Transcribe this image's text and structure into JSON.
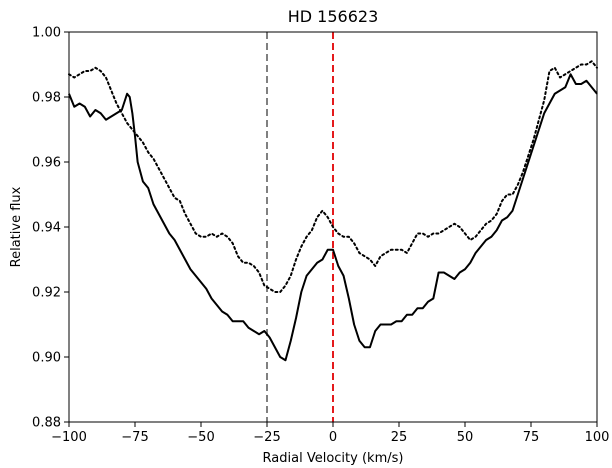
{
  "chart_data": {
    "type": "line",
    "title": "HD 156623",
    "xlabel": "Radial Velocity (km/s)",
    "ylabel": "Relative flux",
    "xlim": [
      -100,
      100
    ],
    "ylim": [
      0.88,
      1.0
    ],
    "xticks": [
      -100,
      -75,
      -50,
      -25,
      0,
      25,
      50,
      75,
      100
    ],
    "xtick_labels": [
      "−100",
      "−75",
      "−50",
      "−25",
      "0",
      "25",
      "50",
      "75",
      "100"
    ],
    "yticks": [
      0.88,
      0.9,
      0.92,
      0.94,
      0.96,
      0.98,
      1.0
    ],
    "ytick_labels": [
      "0.88",
      "0.90",
      "0.92",
      "0.94",
      "0.96",
      "0.98",
      "1.00"
    ],
    "grid": false,
    "legend": null,
    "vlines": [
      {
        "x": -25,
        "color": "#808080",
        "style": "dashed"
      },
      {
        "x": 0,
        "color": "#e41a1c",
        "style": "dashed"
      }
    ],
    "series": [
      {
        "style": "solid",
        "color": "#000000",
        "x": [
          -100,
          -98,
          -96,
          -94,
          -92,
          -90,
          -88,
          -86,
          -84,
          -82,
          -80,
          -78,
          -77,
          -76,
          -75,
          -74,
          -73,
          -72,
          -70,
          -68,
          -66,
          -64,
          -62,
          -60,
          -58,
          -56,
          -54,
          -52,
          -50,
          -48,
          -46,
          -44,
          -42,
          -40,
          -38,
          -36,
          -34,
          -32,
          -30,
          -28,
          -26,
          -24,
          -22,
          -20,
          -18,
          -16,
          -14,
          -12,
          -10,
          -8,
          -6,
          -4,
          -2,
          0,
          2,
          4,
          6,
          8,
          10,
          12,
          14,
          16,
          18,
          20,
          22,
          24,
          26,
          28,
          30,
          32,
          34,
          36,
          38,
          40,
          42,
          44,
          46,
          48,
          50,
          52,
          54,
          56,
          58,
          60,
          62,
          64,
          66,
          68,
          70,
          72,
          74,
          76,
          78,
          80,
          82,
          84,
          86,
          88,
          90,
          92,
          94,
          96,
          98,
          100
        ],
        "y": [
          0.981,
          0.977,
          0.978,
          0.977,
          0.974,
          0.976,
          0.975,
          0.973,
          0.974,
          0.975,
          0.976,
          0.981,
          0.98,
          0.975,
          0.968,
          0.96,
          0.957,
          0.954,
          0.952,
          0.947,
          0.944,
          0.941,
          0.938,
          0.936,
          0.933,
          0.93,
          0.927,
          0.925,
          0.923,
          0.921,
          0.918,
          0.916,
          0.914,
          0.913,
          0.911,
          0.911,
          0.911,
          0.909,
          0.908,
          0.907,
          0.908,
          0.906,
          0.903,
          0.9,
          0.899,
          0.905,
          0.912,
          0.92,
          0.925,
          0.927,
          0.929,
          0.93,
          0.933,
          0.933,
          0.928,
          0.925,
          0.918,
          0.91,
          0.905,
          0.903,
          0.903,
          0.908,
          0.91,
          0.91,
          0.91,
          0.911,
          0.911,
          0.913,
          0.913,
          0.915,
          0.915,
          0.917,
          0.918,
          0.926,
          0.926,
          0.925,
          0.924,
          0.926,
          0.927,
          0.929,
          0.932,
          0.934,
          0.936,
          0.937,
          0.939,
          0.942,
          0.943,
          0.945,
          0.95,
          0.955,
          0.96,
          0.965,
          0.97,
          0.975,
          0.978,
          0.981,
          0.982,
          0.983,
          0.987,
          0.984,
          0.984,
          0.985,
          0.983,
          0.981
        ]
      },
      {
        "style": "dotted",
        "color": "#000000",
        "x": [
          -100,
          -98,
          -96,
          -94,
          -92,
          -90,
          -88,
          -86,
          -84,
          -82,
          -80,
          -78,
          -76,
          -74,
          -72,
          -70,
          -68,
          -66,
          -64,
          -62,
          -60,
          -58,
          -56,
          -54,
          -52,
          -50,
          -48,
          -46,
          -44,
          -42,
          -40,
          -38,
          -36,
          -34,
          -32,
          -30,
          -28,
          -26,
          -24,
          -22,
          -20,
          -18,
          -16,
          -14,
          -12,
          -10,
          -8,
          -6,
          -4,
          -2,
          0,
          2,
          4,
          6,
          8,
          10,
          12,
          14,
          16,
          18,
          20,
          22,
          24,
          26,
          28,
          30,
          32,
          34,
          36,
          38,
          40,
          42,
          44,
          46,
          48,
          50,
          52,
          54,
          56,
          58,
          60,
          62,
          64,
          66,
          68,
          70,
          72,
          74,
          76,
          78,
          80,
          82,
          84,
          86,
          88,
          90,
          92,
          94,
          96,
          98,
          100
        ],
        "y": [
          0.987,
          0.986,
          0.987,
          0.988,
          0.988,
          0.989,
          0.988,
          0.986,
          0.982,
          0.978,
          0.975,
          0.972,
          0.97,
          0.968,
          0.966,
          0.963,
          0.961,
          0.958,
          0.955,
          0.952,
          0.949,
          0.948,
          0.944,
          0.941,
          0.938,
          0.937,
          0.937,
          0.938,
          0.937,
          0.938,
          0.937,
          0.935,
          0.931,
          0.929,
          0.929,
          0.928,
          0.926,
          0.922,
          0.921,
          0.92,
          0.92,
          0.922,
          0.925,
          0.93,
          0.934,
          0.937,
          0.939,
          0.943,
          0.945,
          0.943,
          0.94,
          0.938,
          0.937,
          0.937,
          0.935,
          0.932,
          0.931,
          0.93,
          0.928,
          0.931,
          0.932,
          0.933,
          0.933,
          0.933,
          0.932,
          0.935,
          0.938,
          0.938,
          0.937,
          0.938,
          0.938,
          0.939,
          0.94,
          0.941,
          0.94,
          0.938,
          0.936,
          0.937,
          0.939,
          0.941,
          0.942,
          0.944,
          0.948,
          0.95,
          0.95,
          0.953,
          0.957,
          0.962,
          0.967,
          0.973,
          0.979,
          0.988,
          0.989,
          0.986,
          0.987,
          0.988,
          0.989,
          0.99,
          0.99,
          0.991,
          0.989
        ]
      }
    ]
  }
}
